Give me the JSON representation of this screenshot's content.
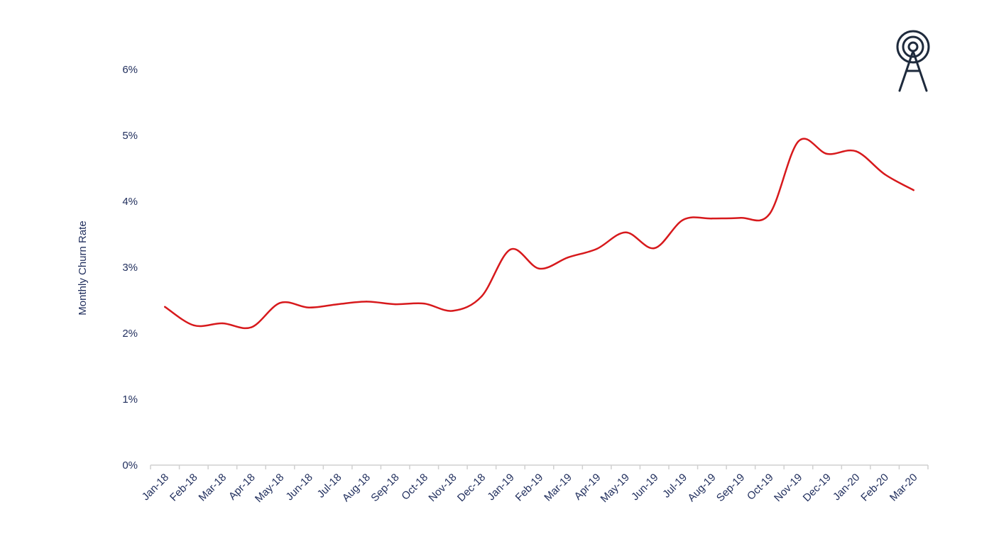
{
  "colors": {
    "line": "#d7191c",
    "text": "#1f2d5c",
    "axis": "#d0d0d0",
    "logo": "#1e2a3c"
  },
  "logo_icon": "radio-tower-icon",
  "chart_data": {
    "type": "line",
    "title": "",
    "xlabel": "",
    "ylabel": "Monthly Churn Rate",
    "ylim": [
      0,
      6
    ],
    "yticks": [
      "0%",
      "1%",
      "2%",
      "3%",
      "4%",
      "5%",
      "6%"
    ],
    "grid": false,
    "legend": "none",
    "categories": [
      "Jan-18",
      "Feb-18",
      "Mar-18",
      "Apr-18",
      "May-18",
      "Jun-18",
      "Jul-18",
      "Aug-18",
      "Sep-18",
      "Oct-18",
      "Nov-18",
      "Dec-18",
      "Jan-19",
      "Feb-19",
      "Mar-19",
      "Apr-19",
      "May-19",
      "Jun-19",
      "Jul-19",
      "Aug-19",
      "Sep-19",
      "Oct-19",
      "Nov-19",
      "Dec-19",
      "Jan-20",
      "Feb-20",
      "Mar-20"
    ],
    "series": [
      {
        "values": [
          2.4,
          2.12,
          2.15,
          2.09,
          2.46,
          2.39,
          2.44,
          2.48,
          2.44,
          2.45,
          2.34,
          2.56,
          3.27,
          2.98,
          3.15,
          3.28,
          3.53,
          3.29,
          3.72,
          3.74,
          3.75,
          3.81,
          4.91,
          4.72,
          4.76,
          4.41,
          4.17
        ]
      }
    ]
  }
}
